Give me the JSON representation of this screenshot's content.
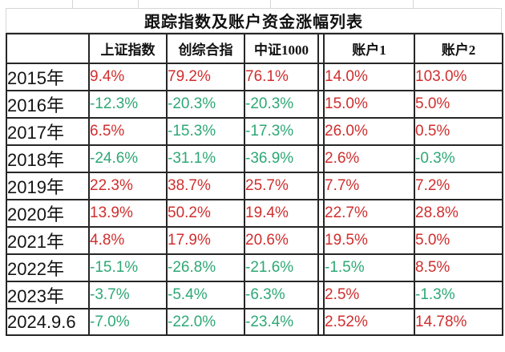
{
  "title": "跟踪指数及账户资金涨幅列表",
  "colors": {
    "positive": "#d02e2e",
    "negative": "#2ea875",
    "text": "#1b1b1b",
    "table_border": "#262626",
    "gridline": "#d6d6d6"
  },
  "table": {
    "headers": [
      "",
      "上证指数",
      "创综合指",
      "中证1000",
      "账户1",
      "账户2"
    ],
    "rows": [
      {
        "label": "2015年",
        "values": [
          "9.4%",
          "79.2%",
          "76.1%",
          "14.0%",
          "103.0%"
        ]
      },
      {
        "label": "2016年",
        "values": [
          "-12.3%",
          "-20.3%",
          "-20.3%",
          "15.0%",
          "5.0%"
        ]
      },
      {
        "label": "2017年",
        "values": [
          "6.5%",
          "-15.3%",
          "-17.3%",
          "26.0%",
          "0.5%"
        ]
      },
      {
        "label": "2018年",
        "values": [
          "-24.6%",
          "-31.1%",
          "-36.9%",
          "2.6%",
          "-0.3%"
        ]
      },
      {
        "label": "2019年",
        "values": [
          "22.3%",
          "38.7%",
          "25.7%",
          "7.7%",
          "7.2%"
        ]
      },
      {
        "label": "2020年",
        "values": [
          "13.9%",
          "50.2%",
          "19.4%",
          "22.7%",
          "28.8%"
        ]
      },
      {
        "label": "2021年",
        "values": [
          "4.8%",
          "17.9%",
          "20.6%",
          "19.5%",
          "5.0%"
        ]
      },
      {
        "label": "2022年",
        "values": [
          "-15.1%",
          "-26.8%",
          "-21.6%",
          "-1.5%",
          "8.5%"
        ]
      },
      {
        "label": "2023年",
        "values": [
          "-3.7%",
          "-5.4%",
          "-6.3%",
          "2.5%",
          "-1.3%"
        ]
      },
      {
        "label": "2024.9.6",
        "values": [
          "-7.0%",
          "-22.0%",
          "-23.4%",
          "2.52%",
          "14.78%"
        ]
      }
    ]
  }
}
